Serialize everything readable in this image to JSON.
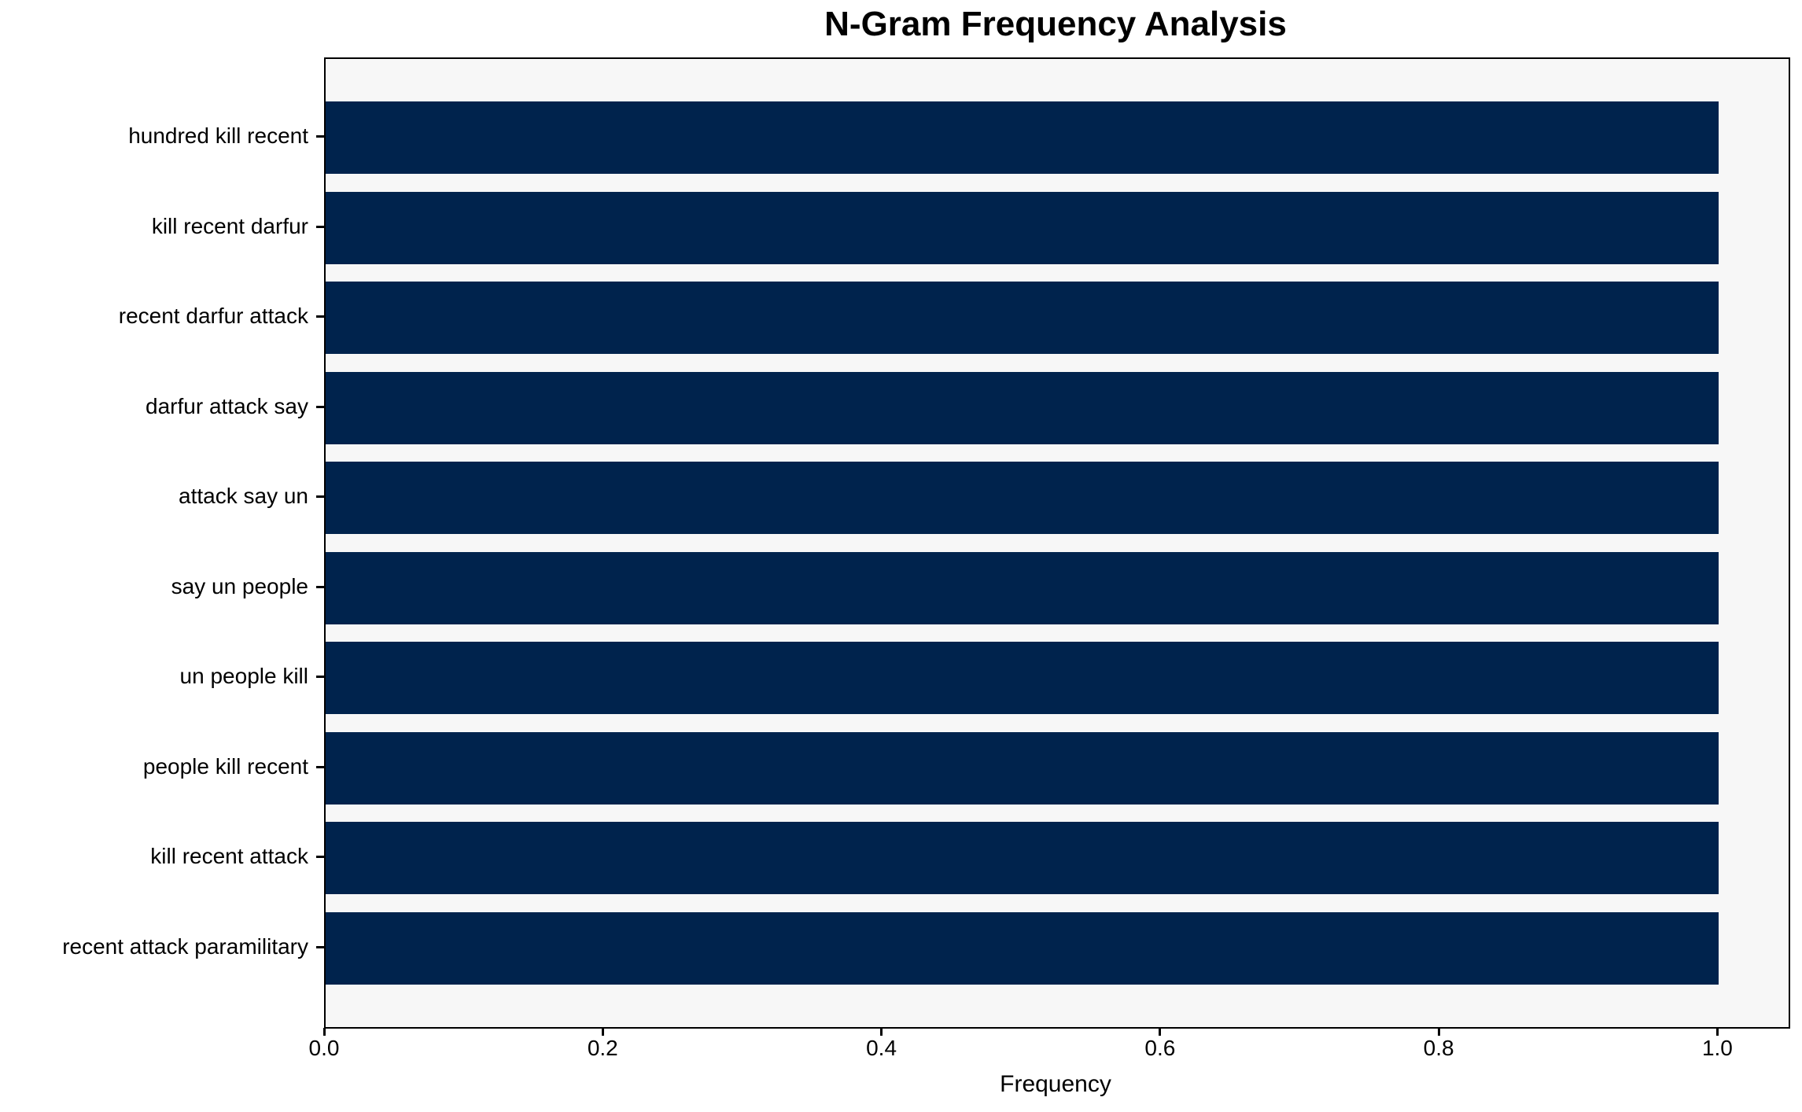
{
  "title": "N-Gram Frequency Analysis",
  "chart_data": {
    "type": "bar",
    "orientation": "horizontal",
    "title": "N-Gram Frequency Analysis",
    "categories": [
      "hundred kill recent",
      "kill recent darfur",
      "recent darfur attack",
      "darfur attack say",
      "attack say un",
      "say un people",
      "un people kill",
      "people kill recent",
      "kill recent attack",
      "recent attack paramilitary"
    ],
    "values": [
      1.0,
      1.0,
      1.0,
      1.0,
      1.0,
      1.0,
      1.0,
      1.0,
      1.0,
      1.0
    ],
    "xlabel": "Frequency",
    "ylabel": "",
    "xlim": [
      0,
      1.05
    ],
    "x_ticks": [
      "0.0",
      "0.2",
      "0.4",
      "0.6",
      "0.8",
      "1.0"
    ],
    "x_tick_values": [
      0.0,
      0.2,
      0.4,
      0.6,
      0.8,
      1.0
    ],
    "grid": false,
    "legend_position": "none",
    "bar_relative_height": 0.8,
    "colors": {
      "bar": "#00234d",
      "plot_background": "#f7f7f7",
      "figure_background": "#ffffff",
      "spine": "#000000",
      "text": "#000000"
    }
  }
}
